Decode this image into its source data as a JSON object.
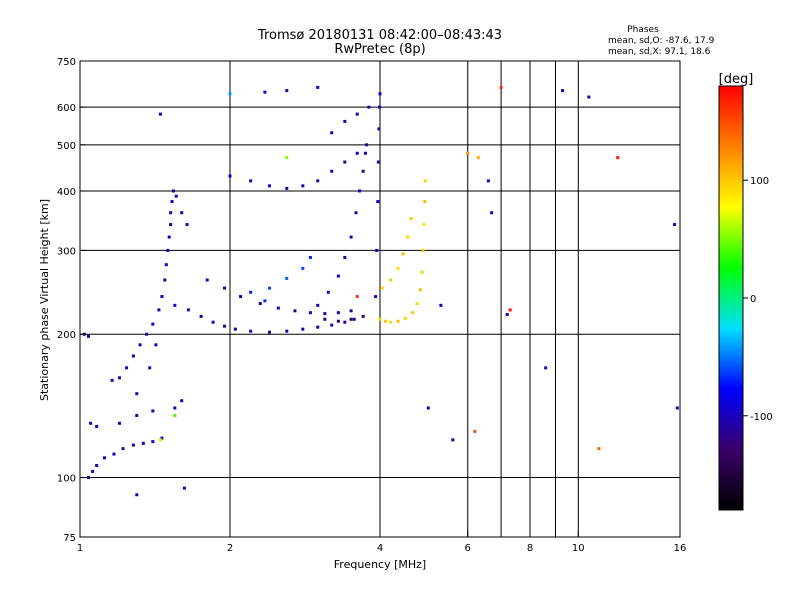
{
  "chart_data": {
    "type": "scatter",
    "title": "Tromsø 20180131 08:42:00–08:43:43",
    "subtitle": "RwPretec (8p)",
    "xlabel": "Frequency [MHz]",
    "ylabel": "Stationary phase Virtual Height [km]",
    "x_scale": "log",
    "y_scale": "log",
    "xlim": [
      1,
      16
    ],
    "ylim": [
      75,
      750
    ],
    "x_ticks": [
      {
        "value": 1,
        "label": "1"
      },
      {
        "value": 2,
        "label": "2"
      },
      {
        "value": 4,
        "label": "4"
      },
      {
        "value": 6,
        "label": "6"
      },
      {
        "value": 8,
        "label": "8"
      },
      {
        "value": 10,
        "label": "10"
      },
      {
        "value": 16,
        "label": "16"
      }
    ],
    "y_ticks": [
      {
        "value": 75,
        "label": "75"
      },
      {
        "value": 100,
        "label": "100"
      },
      {
        "value": 200,
        "label": "200"
      },
      {
        "value": 300,
        "label": "300"
      },
      {
        "value": 400,
        "label": "400"
      },
      {
        "value": 500,
        "label": "500"
      },
      {
        "value": 600,
        "label": "600"
      },
      {
        "value": 750,
        "label": "750"
      }
    ],
    "x_grid": [
      2,
      4,
      6,
      7,
      8,
      9,
      10
    ],
    "y_grid": [
      100,
      200,
      300,
      400,
      500,
      600
    ],
    "grid": true,
    "info_title": "Phases",
    "info_line_o": "mean, sd,O: -87.6, 17.9",
    "info_line_x": "mean, sd,X:  97.1, 18.6",
    "colorbar": {
      "label": "[deg]",
      "range": [
        -180,
        180
      ],
      "ticks": [
        {
          "value": 100,
          "label": "100"
        },
        {
          "value": 0,
          "label": "0"
        },
        {
          "value": -100,
          "label": "-100"
        }
      ],
      "colors": [
        "#000000",
        "#3a006a",
        "#0000ff",
        "#00e0ff",
        "#00ff00",
        "#ffff00",
        "#ff8000",
        "#ff0000"
      ]
    },
    "series": [
      {
        "points": [
          [
            1.02,
            200,
            -110
          ],
          [
            1.04,
            198,
            -105
          ],
          [
            1.05,
            130,
            -100
          ],
          [
            1.08,
            128,
            -95
          ],
          [
            1.04,
            100,
            -110
          ],
          [
            1.06,
            103,
            -100
          ],
          [
            1.08,
            106,
            -95
          ],
          [
            1.12,
            110,
            -100
          ],
          [
            1.17,
            112,
            -105
          ],
          [
            1.22,
            115,
            -110
          ],
          [
            1.28,
            117,
            -100
          ],
          [
            1.34,
            118,
            -105
          ],
          [
            1.4,
            119,
            -95
          ],
          [
            1.46,
            121,
            -110
          ],
          [
            1.16,
            160,
            -100
          ],
          [
            1.2,
            162,
            -105
          ],
          [
            1.24,
            170,
            -95
          ],
          [
            1.28,
            180,
            -110
          ],
          [
            1.32,
            190,
            -100
          ],
          [
            1.36,
            200,
            -105
          ],
          [
            1.4,
            210,
            -95
          ],
          [
            1.44,
            225,
            -110
          ],
          [
            1.46,
            240,
            -100
          ],
          [
            1.48,
            260,
            -105
          ],
          [
            1.49,
            280,
            -95
          ],
          [
            1.5,
            300,
            -110
          ],
          [
            1.51,
            320,
            -100
          ],
          [
            1.52,
            340,
            -105
          ],
          [
            1.52,
            360,
            -115
          ],
          [
            1.53,
            380,
            -100
          ],
          [
            1.54,
            400,
            -110
          ],
          [
            1.56,
            390,
            -95
          ],
          [
            1.6,
            360,
            -105
          ],
          [
            1.64,
            340,
            -100
          ],
          [
            1.2,
            130,
            -100
          ],
          [
            1.3,
            135,
            -105
          ],
          [
            1.4,
            138,
            -95
          ],
          [
            1.55,
            140,
            -110
          ],
          [
            1.6,
            145,
            -100
          ],
          [
            1.3,
            150,
            -110
          ],
          [
            1.38,
            170,
            -100
          ],
          [
            1.42,
            190,
            -105
          ],
          [
            1.55,
            230,
            -100
          ],
          [
            1.65,
            225,
            -110
          ],
          [
            1.75,
            218,
            -105
          ],
          [
            1.85,
            212,
            -100
          ],
          [
            1.95,
            208,
            -110
          ],
          [
            2.05,
            205,
            -105
          ],
          [
            2.2,
            203,
            -100
          ],
          [
            2.4,
            202,
            -110
          ],
          [
            2.6,
            203,
            -105
          ],
          [
            2.8,
            205,
            -100
          ],
          [
            3.0,
            207,
            -110
          ],
          [
            3.2,
            209,
            -105
          ],
          [
            3.4,
            212,
            -100
          ],
          [
            3.55,
            215,
            -110
          ],
          [
            1.8,
            260,
            -100
          ],
          [
            1.95,
            250,
            -105
          ],
          [
            2.1,
            240,
            -95
          ],
          [
            2.3,
            232,
            -110
          ],
          [
            2.5,
            227,
            -100
          ],
          [
            2.7,
            224,
            -105
          ],
          [
            2.9,
            222,
            -95
          ],
          [
            3.1,
            221,
            -110
          ],
          [
            3.3,
            222,
            -100
          ],
          [
            3.5,
            224,
            -105
          ],
          [
            2.2,
            245,
            -70
          ],
          [
            2.4,
            250,
            -60
          ],
          [
            2.6,
            262,
            -55
          ],
          [
            2.8,
            275,
            -60
          ],
          [
            2.9,
            290,
            -70
          ],
          [
            2.35,
            235,
            -65
          ],
          [
            3.0,
            230,
            -100
          ],
          [
            3.15,
            245,
            -105
          ],
          [
            3.3,
            265,
            -95
          ],
          [
            3.4,
            290,
            -110
          ],
          [
            3.5,
            320,
            -100
          ],
          [
            3.58,
            360,
            -105
          ],
          [
            3.64,
            400,
            -95
          ],
          [
            3.7,
            440,
            -110
          ],
          [
            3.74,
            480,
            -100
          ],
          [
            3.76,
            500,
            -105
          ],
          [
            3.92,
            240,
            -100
          ],
          [
            3.94,
            300,
            -105
          ],
          [
            3.96,
            380,
            -95
          ],
          [
            3.97,
            460,
            -110
          ],
          [
            3.98,
            540,
            -100
          ],
          [
            3.99,
            600,
            -105
          ],
          [
            4.0,
            640,
            -95
          ],
          [
            2.0,
            430,
            -100
          ],
          [
            2.2,
            420,
            -105
          ],
          [
            2.4,
            410,
            -95
          ],
          [
            2.6,
            405,
            -110
          ],
          [
            2.8,
            410,
            -100
          ],
          [
            3.0,
            420,
            -105
          ],
          [
            3.2,
            440,
            -95
          ],
          [
            3.4,
            460,
            -110
          ],
          [
            3.6,
            480,
            -100
          ],
          [
            3.2,
            530,
            -100
          ],
          [
            3.4,
            560,
            -105
          ],
          [
            3.6,
            580,
            -95
          ],
          [
            3.8,
            600,
            -110
          ],
          [
            3.1,
            215,
            -135
          ],
          [
            3.3,
            213,
            -140
          ],
          [
            3.5,
            215,
            -135
          ],
          [
            3.7,
            218,
            -140
          ],
          [
            4.0,
            215,
            95
          ],
          [
            4.1,
            213,
            100
          ],
          [
            4.2,
            212,
            90
          ],
          [
            4.35,
            213,
            105
          ],
          [
            4.5,
            216,
            95
          ],
          [
            4.65,
            222,
            100
          ],
          [
            4.75,
            232,
            90
          ],
          [
            4.82,
            248,
            105
          ],
          [
            4.86,
            270,
            95
          ],
          [
            4.88,
            300,
            100
          ],
          [
            4.9,
            340,
            90
          ],
          [
            4.92,
            380,
            105
          ],
          [
            4.93,
            420,
            95
          ],
          [
            4.05,
            250,
            95
          ],
          [
            4.2,
            260,
            100
          ],
          [
            4.35,
            275,
            90
          ],
          [
            4.45,
            295,
            105
          ],
          [
            4.55,
            320,
            95
          ],
          [
            4.62,
            350,
            100
          ],
          [
            6.0,
            480,
            120
          ],
          [
            6.3,
            470,
            110
          ],
          [
            6.2,
            125,
            150
          ],
          [
            7.0,
            660,
            160
          ],
          [
            7.3,
            225,
            170
          ],
          [
            11.0,
            115,
            140
          ],
          [
            12.0,
            470,
            170
          ],
          [
            1.45,
            120,
            60
          ],
          [
            1.55,
            135,
            40
          ],
          [
            2.6,
            470,
            50
          ],
          [
            3.6,
            240,
            160
          ],
          [
            1.45,
            580,
            -100
          ],
          [
            2.35,
            645,
            -100
          ],
          [
            2.6,
            650,
            -100
          ],
          [
            3.0,
            660,
            -100
          ],
          [
            6.6,
            420,
            -100
          ],
          [
            6.7,
            360,
            -95
          ],
          [
            5.6,
            120,
            -100
          ],
          [
            8.6,
            170,
            -100
          ],
          [
            9.3,
            650,
            -100
          ],
          [
            10.5,
            630,
            -100
          ],
          [
            15.6,
            340,
            -100
          ],
          [
            15.8,
            140,
            -100
          ],
          [
            5.3,
            230,
            -95
          ],
          [
            7.2,
            220,
            -100
          ],
          [
            1.62,
            95,
            -100
          ],
          [
            1.3,
            92,
            -100
          ],
          [
            2.0,
            640,
            -40
          ],
          [
            5.0,
            140,
            -100
          ]
        ]
      }
    ]
  }
}
